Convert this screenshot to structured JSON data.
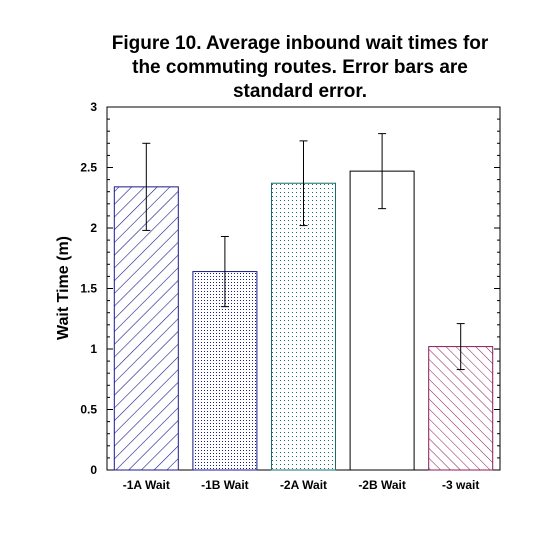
{
  "chart_data": {
    "type": "bar",
    "title_lines": [
      "Figure 10. Average inbound wait times for",
      "the commuting routes. Error bars are",
      "standard error."
    ],
    "xlabel": "",
    "ylabel": "Wait Time (m)",
    "ylim": [
      0,
      3
    ],
    "yticks": [
      "0",
      "0.5",
      "1",
      "1.5",
      "2",
      "2.5",
      "3"
    ],
    "categories": [
      "-1A Wait",
      "-1B Wait",
      "-2A Wait",
      "-2B Wait",
      "-3 wait"
    ],
    "values": [
      2.34,
      1.64,
      2.37,
      2.47,
      1.02
    ],
    "error": [
      0.36,
      0.29,
      0.35,
      0.31,
      0.19
    ],
    "fills": [
      "diagonal-hatch",
      "dense-dots",
      "sparse-dots",
      "solid",
      "back-diagonal-hatch"
    ],
    "colors": {
      "bar1": "#1a1a8c",
      "bar2": "#1a1a8c",
      "bar3": "#1a6b6b",
      "bar4": "#000000",
      "bar5": "#8b1a5a"
    },
    "grid": false,
    "legend": "none"
  }
}
